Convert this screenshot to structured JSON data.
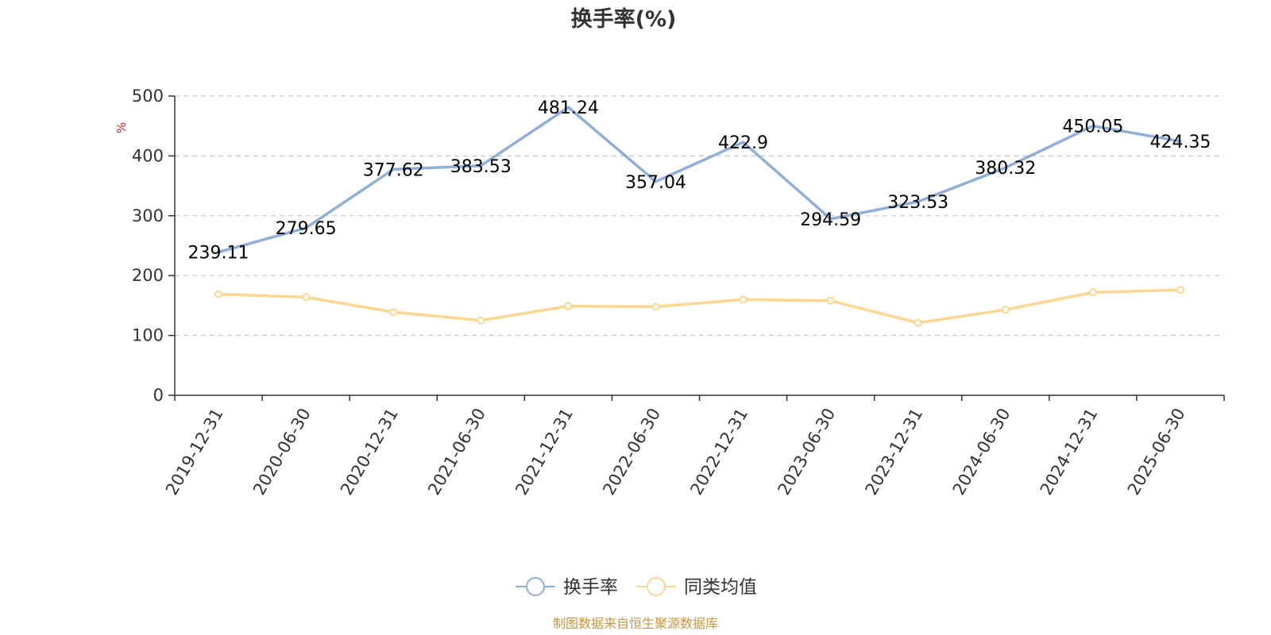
{
  "chart_data": {
    "type": "line",
    "title": "换手率(%)",
    "ylabel": "%",
    "ylim": [
      0,
      500
    ],
    "yticks": [
      0,
      100,
      200,
      300,
      400,
      500
    ],
    "grid": true,
    "legend_position": "bottom-center",
    "categories": [
      "2019-12-31",
      "2020-06-30",
      "2020-12-31",
      "2021-06-30",
      "2021-12-31",
      "2022-06-30",
      "2022-12-31",
      "2023-06-30",
      "2023-12-31",
      "2024-06-30",
      "2024-12-31",
      "2025-06-30"
    ],
    "series": [
      {
        "name": "换手率",
        "color": "#8eaedb",
        "values": [
          239.11,
          279.65,
          377.62,
          383.53,
          481.24,
          357.04,
          422.9,
          294.59,
          323.53,
          380.32,
          450.05,
          424.35
        ],
        "labels": [
          "239.11",
          "279.65",
          "377.62",
          "383.53",
          "481.24",
          "357.04",
          "422.9",
          "294.59",
          "323.53",
          "380.32",
          "450.05",
          "424.35"
        ],
        "show_labels": true,
        "show_markers": false
      },
      {
        "name": "同类均值",
        "color": "#fdd68f",
        "values": [
          169,
          164,
          139,
          125,
          149,
          148,
          160,
          158,
          121,
          143,
          172,
          176
        ],
        "show_labels": false,
        "show_markers": true
      }
    ]
  },
  "footer": {
    "source": "制图数据来自恒生聚源数据库"
  }
}
